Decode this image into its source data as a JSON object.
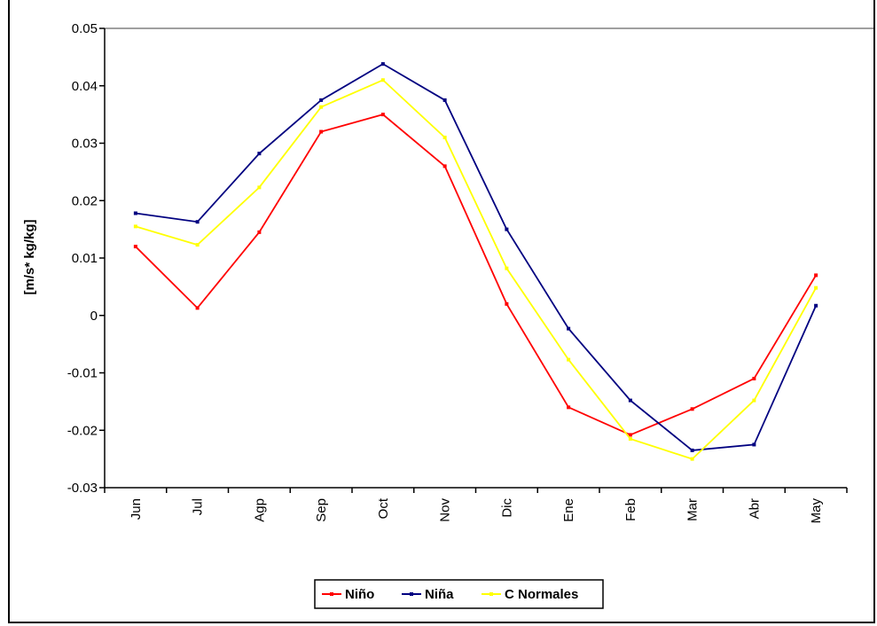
{
  "chart_data": {
    "type": "line",
    "title": "",
    "xlabel": "",
    "ylabel": "[m/s* kg/kg]",
    "ylim": [
      -0.03,
      0.05
    ],
    "yticks": [
      "0.05",
      "0.04",
      "0.03",
      "0.02",
      "0.01",
      "0",
      "-0.01",
      "-0.02",
      "-0.03"
    ],
    "ytick_values": [
      0.05,
      0.04,
      0.03,
      0.02,
      0.01,
      0,
      -0.01,
      -0.02,
      -0.03
    ],
    "categories": [
      "Jun",
      "Jul",
      "Agp",
      "Sep",
      "Oct",
      "Nov",
      "Dic",
      "Ene",
      "Feb",
      "Mar",
      "Abr",
      "May"
    ],
    "grid": false,
    "legend_position": "bottom",
    "series": [
      {
        "name": "Niño",
        "color": "#ff0000",
        "values": [
          0.012,
          0.0013,
          0.0145,
          0.032,
          0.035,
          0.026,
          0.002,
          -0.016,
          -0.0208,
          -0.0163,
          -0.011,
          0.007
        ]
      },
      {
        "name": "Niña",
        "color": "#000080",
        "values": [
          0.0178,
          0.0163,
          0.0282,
          0.0375,
          0.0438,
          0.0375,
          0.015,
          -0.0023,
          -0.0148,
          -0.0235,
          -0.0225,
          0.0017
        ]
      },
      {
        "name": "C Normales",
        "color": "#ffff00",
        "values": [
          0.0155,
          0.0123,
          0.0223,
          0.0363,
          0.041,
          0.031,
          0.0082,
          -0.0077,
          -0.0215,
          -0.025,
          -0.0148,
          0.0048
        ]
      }
    ]
  }
}
